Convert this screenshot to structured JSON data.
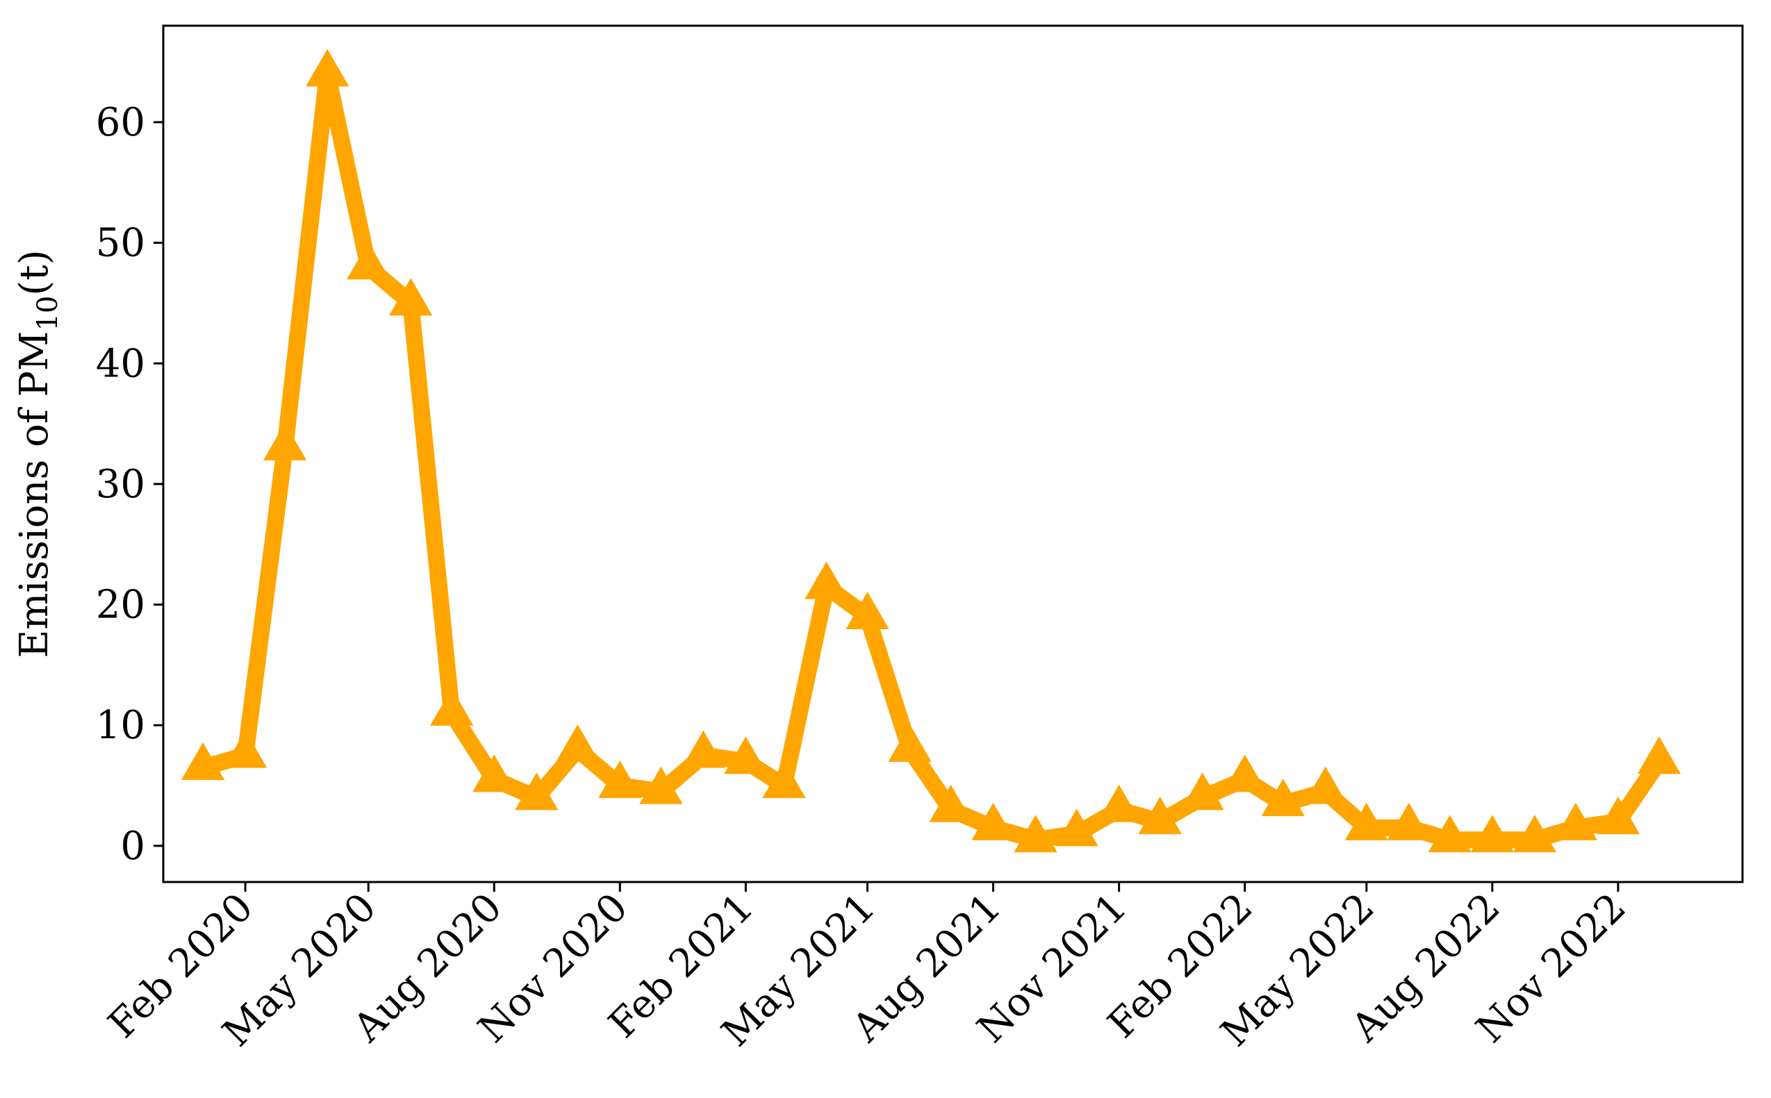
{
  "chart_data": {
    "type": "line",
    "ylabel_prefix": "Emissions of PM",
    "ylabel_sub": "10",
    "ylabel_suffix": "(t)",
    "x_dates": [
      "2020-01",
      "2020-02",
      "2020-03",
      "2020-04",
      "2020-05",
      "2020-06",
      "2020-07",
      "2020-08",
      "2020-09",
      "2020-10",
      "2020-11",
      "2020-12",
      "2021-01",
      "2021-02",
      "2021-03",
      "2021-04",
      "2021-05",
      "2021-06",
      "2021-07",
      "2021-08",
      "2021-09",
      "2021-10",
      "2021-11",
      "2021-12",
      "2022-01",
      "2022-02",
      "2022-03",
      "2022-04",
      "2022-05",
      "2022-06",
      "2022-07",
      "2022-08",
      "2022-09",
      "2022-10",
      "2022-11",
      "2022-12"
    ],
    "series": [
      {
        "color": "#FFA500",
        "marker": "triangle",
        "values": [
          6.5,
          7.5,
          33,
          64,
          48,
          45,
          11,
          5.5,
          4,
          8,
          5,
          4.5,
          7.5,
          7,
          5,
          21.5,
          19,
          8,
          3,
          1.5,
          0.5,
          1,
          3,
          2,
          4,
          5.5,
          3.5,
          4.5,
          1.5,
          1.5,
          0.5,
          0.5,
          0.5,
          1.5,
          2,
          7
        ]
      }
    ],
    "xlim": [
      "2019-12-03",
      "2023-01-31"
    ],
    "ylim": [
      -3,
      68
    ],
    "y_ticks": [
      0,
      10,
      20,
      30,
      40,
      50,
      60
    ],
    "x_ticks": [
      {
        "date": "2020-02",
        "label": "Feb 2020"
      },
      {
        "date": "2020-05",
        "label": "May 2020"
      },
      {
        "date": "2020-08",
        "label": "Aug 2020"
      },
      {
        "date": "2020-11",
        "label": "Nov 2020"
      },
      {
        "date": "2021-02",
        "label": "Feb 2021"
      },
      {
        "date": "2021-05",
        "label": "May 2021"
      },
      {
        "date": "2021-08",
        "label": "Aug 2021"
      },
      {
        "date": "2021-11",
        "label": "Nov 2021"
      },
      {
        "date": "2022-02",
        "label": "Feb 2022"
      },
      {
        "date": "2022-05",
        "label": "May 2022"
      },
      {
        "date": "2022-08",
        "label": "Aug 2022"
      },
      {
        "date": "2022-11",
        "label": "Nov 2022"
      }
    ],
    "grid": false,
    "legend": false
  }
}
